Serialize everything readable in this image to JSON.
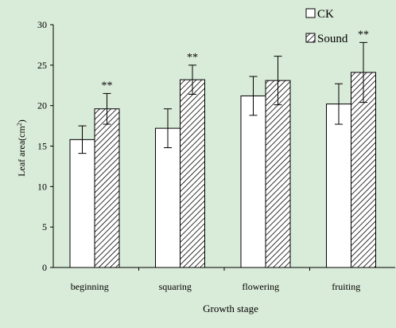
{
  "chart_data": {
    "type": "bar",
    "categories": [
      "beginning",
      "squaring",
      "flowering",
      "fruiting"
    ],
    "series": [
      {
        "name": "CK",
        "values": [
          15.8,
          17.2,
          21.2,
          20.2
        ],
        "errors": [
          1.7,
          2.4,
          2.4,
          2.5
        ],
        "annotations": [
          "",
          "",
          "",
          ""
        ]
      },
      {
        "name": "Sound",
        "values": [
          19.6,
          23.2,
          23.1,
          24.1
        ],
        "errors": [
          1.9,
          1.8,
          3.0,
          3.7
        ],
        "annotations": [
          "**",
          "**",
          "",
          "**"
        ]
      }
    ],
    "xlabel": "Growth stage",
    "ylabel_main": "Leaf area(cm",
    "ylabel_sup": "2",
    "ylabel_close": ")",
    "ylim": [
      0,
      30
    ],
    "yticks": [
      "0",
      "5",
      "10",
      "15",
      "20",
      "25",
      "30"
    ],
    "legend_position": "top-right",
    "grid": false,
    "colors": {
      "background": "#d9ebd9",
      "bar_ck": "#ffffff",
      "bar_sound_hatch": "#000000",
      "axis": "#000000"
    }
  }
}
